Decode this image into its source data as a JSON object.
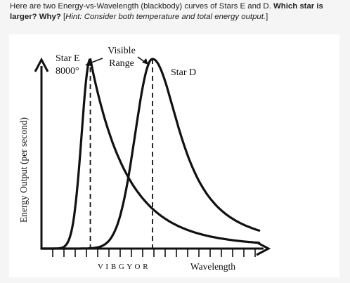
{
  "question": {
    "prefix": "Here are two Energy-vs-Wavelength (blackbody) curves of Stars E and D. ",
    "bold": "Which star is larger? Why?",
    "hint_open": " [",
    "hint_italic": "Hint: Consider both temperature and total energy output.",
    "hint_close": "]"
  },
  "chart_data": {
    "type": "line",
    "xlabel": "Wavelength",
    "ylabel": "Energy Output (per second)",
    "visible_range_label": "Visible\nRange",
    "visible_letters": "VIBGYOR",
    "series": [
      {
        "name": "Star E",
        "temperature_label": "8000°",
        "peak_x": 0.22,
        "peak_y": 1.0,
        "sigma_left": 0.055,
        "tail": 0.95
      },
      {
        "name": "Star D",
        "peak_x": 0.5,
        "peak_y": 1.0,
        "sigma_left": 0.11,
        "tail": 0.55
      }
    ]
  }
}
